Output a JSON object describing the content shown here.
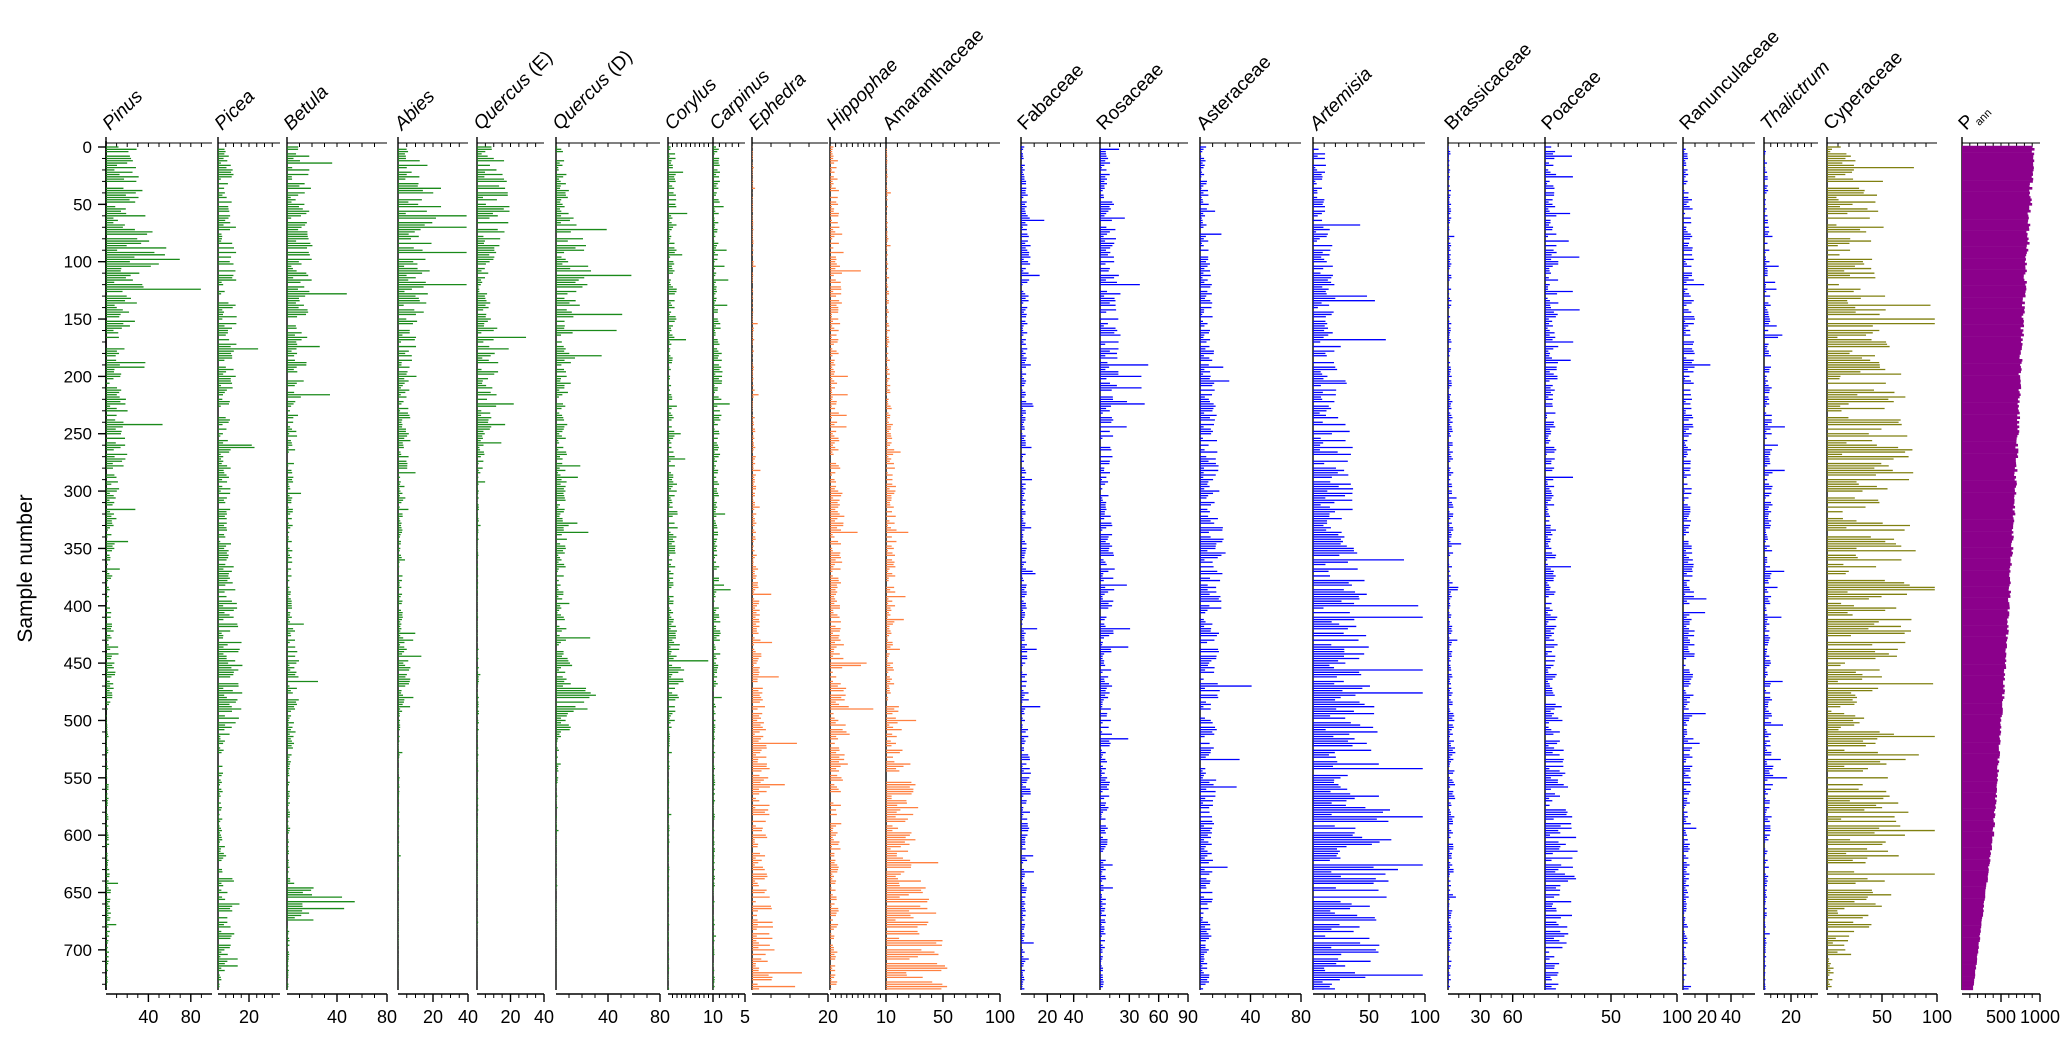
{
  "chart_data": {
    "type": "pollen-diagram",
    "orientation": "horizontal-bars-per-taxon",
    "ylabel": "Sample number",
    "ylim": [
      0,
      735
    ],
    "y_ticks": [
      "0",
      "50",
      "100",
      "150",
      "200",
      "250",
      "300",
      "350",
      "400",
      "450",
      "500",
      "550",
      "600",
      "650",
      "700"
    ],
    "colors": {
      "trees": "#1a8a1a",
      "steppe": "#ff8040",
      "herbs": "#0000ff",
      "cyperaceae": "#808010",
      "pann": "#8b008b"
    },
    "taxa": [
      {
        "name": "Pinus",
        "italic": true,
        "color": "#1a8a1a",
        "max": 100,
        "tick_labels": [
          "40",
          "80"
        ],
        "profile": [
          [
            0,
            22
          ],
          [
            60,
            30
          ],
          [
            100,
            55
          ],
          [
            130,
            25
          ],
          [
            200,
            14
          ],
          [
            260,
            18
          ],
          [
            320,
            8
          ],
          [
            400,
            3
          ],
          [
            440,
            10
          ],
          [
            500,
            2
          ],
          [
            600,
            2
          ],
          [
            660,
            4
          ],
          [
            735,
            1
          ]
        ]
      },
      {
        "name": "Picea",
        "italic": true,
        "color": "#1a8a1a",
        "max": 40,
        "tick_labels": [
          "20"
        ],
        "profile": [
          [
            0,
            8
          ],
          [
            100,
            10
          ],
          [
            180,
            10
          ],
          [
            250,
            7
          ],
          [
            330,
            6
          ],
          [
            430,
            12
          ],
          [
            490,
            14
          ],
          [
            520,
            3
          ],
          [
            600,
            2
          ],
          [
            660,
            12
          ],
          [
            735,
            1
          ]
        ]
      },
      {
        "name": "Betula",
        "italic": true,
        "color": "#1a8a1a",
        "max": 80,
        "tick_labels": [
          "40",
          "80"
        ],
        "profile": [
          [
            0,
            14
          ],
          [
            100,
            16
          ],
          [
            200,
            12
          ],
          [
            280,
            4
          ],
          [
            400,
            3
          ],
          [
            450,
            8
          ],
          [
            490,
            8
          ],
          [
            540,
            2
          ],
          [
            640,
            2
          ],
          [
            660,
            50
          ],
          [
            680,
            2
          ],
          [
            735,
            1
          ]
        ]
      },
      {
        "name": "Abies",
        "italic": true,
        "color": "#1a8a1a",
        "max": 40,
        "tick_labels": [
          "20",
          "40"
        ],
        "profile": [
          [
            0,
            12
          ],
          [
            40,
            20
          ],
          [
            100,
            18
          ],
          [
            140,
            12
          ],
          [
            200,
            5
          ],
          [
            260,
            6
          ],
          [
            330,
            2
          ],
          [
            400,
            2
          ],
          [
            460,
            6
          ],
          [
            500,
            1
          ],
          [
            735,
            0
          ]
        ]
      },
      {
        "name": "Quercus (E)",
        "italic": true,
        "color": "#1a8a1a",
        "max": 40,
        "tick_labels": [
          "20",
          "40"
        ],
        "profile": [
          [
            0,
            12
          ],
          [
            60,
            16
          ],
          [
            120,
            3
          ],
          [
            180,
            16
          ],
          [
            200,
            12
          ],
          [
            260,
            5
          ],
          [
            300,
            1
          ],
          [
            400,
            0.5
          ],
          [
            480,
            1
          ],
          [
            735,
            0
          ]
        ]
      },
      {
        "name": "Quercus (D)",
        "italic": true,
        "color": "#1a8a1a",
        "max": 80,
        "tick_labels": [
          "40",
          "80"
        ],
        "profile": [
          [
            0,
            4
          ],
          [
            60,
            10
          ],
          [
            100,
            22
          ],
          [
            140,
            16
          ],
          [
            180,
            12
          ],
          [
            250,
            6
          ],
          [
            330,
            8
          ],
          [
            400,
            4
          ],
          [
            460,
            12
          ],
          [
            480,
            30
          ],
          [
            520,
            2
          ],
          [
            600,
            0.5
          ],
          [
            735,
            0
          ]
        ]
      },
      {
        "name": "Corylus",
        "italic": true,
        "color": "#1a8a1a",
        "max": 10,
        "tick_labels": [
          "10"
        ],
        "profile": [
          [
            0,
            1.5
          ],
          [
            150,
            1.5
          ],
          [
            200,
            0.6
          ],
          [
            330,
            2
          ],
          [
            380,
            1
          ],
          [
            460,
            3
          ],
          [
            520,
            0.3
          ],
          [
            735,
            0.2
          ]
        ]
      },
      {
        "name": "Carpinus",
        "italic": true,
        "color": "#1a8a1a",
        "max": 5,
        "tick_labels": [
          "5"
        ],
        "profile": [
          [
            0,
            1
          ],
          [
            100,
            0.6
          ],
          [
            200,
            1.2
          ],
          [
            330,
            0.6
          ],
          [
            430,
            1
          ],
          [
            500,
            0.3
          ],
          [
            735,
            0.2
          ]
        ]
      },
      {
        "name": "Ephedra",
        "italic": true,
        "color": "#ff8040",
        "max": 20,
        "tick_labels": [
          "20"
        ],
        "profile": [
          [
            0,
            0.2
          ],
          [
            200,
            0.5
          ],
          [
            330,
            1
          ],
          [
            450,
            2
          ],
          [
            550,
            4
          ],
          [
            620,
            3
          ],
          [
            700,
            5
          ],
          [
            735,
            4
          ]
        ]
      },
      {
        "name": "Hippophae",
        "italic": true,
        "color": "#ff8040",
        "max": 10,
        "tick_labels": [
          "10"
        ],
        "profile": [
          [
            0,
            1
          ],
          [
            100,
            2
          ],
          [
            200,
            1
          ],
          [
            320,
            2
          ],
          [
            400,
            1.5
          ],
          [
            520,
            3
          ],
          [
            600,
            1.5
          ],
          [
            735,
            1
          ]
        ]
      },
      {
        "name": "Amaranthaceae",
        "italic": false,
        "color": "#ff8040",
        "max": 100,
        "tick_labels": [
          "50",
          "100"
        ],
        "profile": [
          [
            0,
            1
          ],
          [
            200,
            3
          ],
          [
            320,
            8
          ],
          [
            450,
            5
          ],
          [
            520,
            12
          ],
          [
            560,
            25
          ],
          [
            620,
            18
          ],
          [
            680,
            40
          ],
          [
            735,
            55
          ]
        ]
      },
      {
        "name": "Fabaceae",
        "italic": false,
        "color": "#0000ff",
        "max": 60,
        "tick_labels": [
          "20",
          "40"
        ],
        "profile": [
          [
            0,
            2
          ],
          [
            80,
            6
          ],
          [
            150,
            4
          ],
          [
            300,
            3
          ],
          [
            450,
            4
          ],
          [
            550,
            6
          ],
          [
            735,
            2
          ]
        ]
      },
      {
        "name": "Rosaceae",
        "italic": false,
        "color": "#0000ff",
        "max": 90,
        "tick_labels": [
          "30",
          "60",
          "90"
        ],
        "profile": [
          [
            0,
            8
          ],
          [
            100,
            14
          ],
          [
            150,
            18
          ],
          [
            300,
            8
          ],
          [
            370,
            12
          ],
          [
            500,
            10
          ],
          [
            600,
            6
          ],
          [
            735,
            4
          ]
        ]
      },
      {
        "name": "Asteraceae",
        "italic": false,
        "color": "#0000ff",
        "max": 80,
        "tick_labels": [
          "40",
          "80"
        ],
        "profile": [
          [
            0,
            4
          ],
          [
            150,
            8
          ],
          [
            300,
            12
          ],
          [
            350,
            16
          ],
          [
            430,
            14
          ],
          [
            550,
            10
          ],
          [
            650,
            8
          ],
          [
            735,
            6
          ]
        ]
      },
      {
        "name": "Artemisia",
        "italic": true,
        "color": "#0000ff",
        "max": 100,
        "tick_labels": [
          "50",
          "100"
        ],
        "profile": [
          [
            0,
            8
          ],
          [
            150,
            18
          ],
          [
            270,
            30
          ],
          [
            330,
            35
          ],
          [
            450,
            40
          ],
          [
            550,
            50
          ],
          [
            620,
            60
          ],
          [
            700,
            50
          ],
          [
            735,
            40
          ]
        ]
      },
      {
        "name": "Brassicaceae",
        "italic": false,
        "color": "#0000ff",
        "max": 90,
        "tick_labels": [
          "30",
          "60"
        ],
        "profile": [
          [
            0,
            2
          ],
          [
            200,
            3
          ],
          [
            300,
            4
          ],
          [
            450,
            3
          ],
          [
            540,
            6
          ],
          [
            735,
            2
          ]
        ]
      },
      {
        "name": "Poaceae",
        "italic": false,
        "color": "#0000ff",
        "max": 100,
        "tick_labels": [
          "50",
          "100"
        ],
        "profile": [
          [
            0,
            6
          ],
          [
            100,
            8
          ],
          [
            200,
            8
          ],
          [
            300,
            6
          ],
          [
            450,
            8
          ],
          [
            560,
            14
          ],
          [
            620,
            20
          ],
          [
            680,
            16
          ],
          [
            735,
            8
          ]
        ]
      },
      {
        "name": "Ranunculaceae",
        "italic": false,
        "color": "#0000ff",
        "max": 60,
        "tick_labels": [
          "20",
          "40"
        ],
        "profile": [
          [
            0,
            3
          ],
          [
            80,
            8
          ],
          [
            150,
            8
          ],
          [
            300,
            6
          ],
          [
            450,
            8
          ],
          [
            600,
            5
          ],
          [
            735,
            2
          ]
        ]
      },
      {
        "name": "Thalictrum",
        "italic": true,
        "color": "#0000ff",
        "max": 40,
        "tick_labels": [
          "20"
        ],
        "profile": [
          [
            0,
            2
          ],
          [
            150,
            4
          ],
          [
            300,
            5
          ],
          [
            450,
            4
          ],
          [
            550,
            6
          ],
          [
            650,
            2
          ],
          [
            735,
            1
          ]
        ]
      },
      {
        "name": "Cyperaceae",
        "italic": false,
        "color": "#808010",
        "max": 100,
        "tick_labels": [
          "50",
          "100"
        ],
        "profile": [
          [
            0,
            10
          ],
          [
            30,
            40
          ],
          [
            100,
            40
          ],
          [
            150,
            45
          ],
          [
            250,
            60
          ],
          [
            350,
            62
          ],
          [
            450,
            64
          ],
          [
            490,
            15
          ],
          [
            520,
            70
          ],
          [
            600,
            55
          ],
          [
            680,
            40
          ],
          [
            700,
            8
          ],
          [
            735,
            3
          ]
        ]
      },
      {
        "name": "P ann",
        "italic": false,
        "color": "#8b008b",
        "max": 1000,
        "tick_labels": [
          "500",
          "1000"
        ],
        "profile": [
          [
            0,
            920
          ],
          [
            150,
            780
          ],
          [
            300,
            680
          ],
          [
            450,
            560
          ],
          [
            600,
            400
          ],
          [
            735,
            140
          ]
        ]
      }
    ],
    "panels_axis_note": "Each column is a separate taxon with its own horizontal x-axis (percent or P ann in mm); bars are drawn per sample from 0 to 735."
  }
}
